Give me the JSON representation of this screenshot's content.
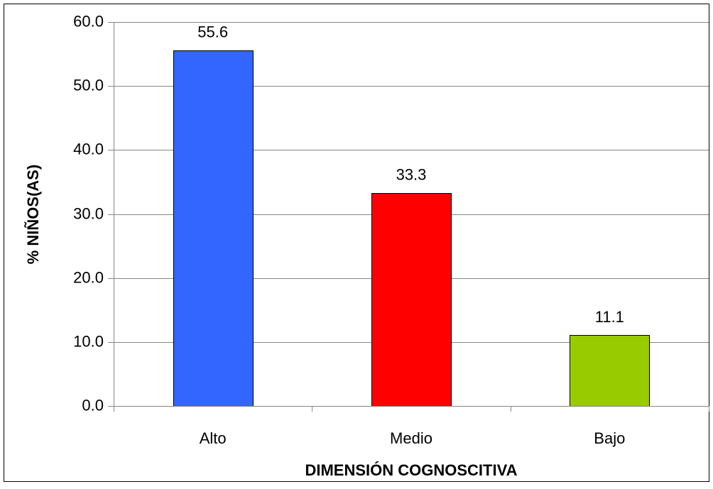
{
  "chart_data": {
    "type": "bar",
    "title": "",
    "xlabel": "DIMENSIÓN COGNOSCITIVA",
    "ylabel": "% NIÑOS(AS)",
    "categories": [
      "Alto",
      "Medio",
      "Bajo"
    ],
    "values": [
      55.6,
      33.3,
      11.1
    ],
    "data_labels": [
      "55.6",
      "33.3",
      "11.1"
    ],
    "bar_colors": [
      "#3366FF",
      "#FF0000",
      "#99CC00"
    ],
    "ylim": [
      0,
      60
    ],
    "yticks": [
      0,
      10,
      20,
      30,
      40,
      50,
      60
    ],
    "ytick_labels": [
      "0.0",
      "10.0",
      "20.0",
      "30.0",
      "40.0",
      "50.0",
      "60.0"
    ],
    "grid": true,
    "legend": "none"
  }
}
